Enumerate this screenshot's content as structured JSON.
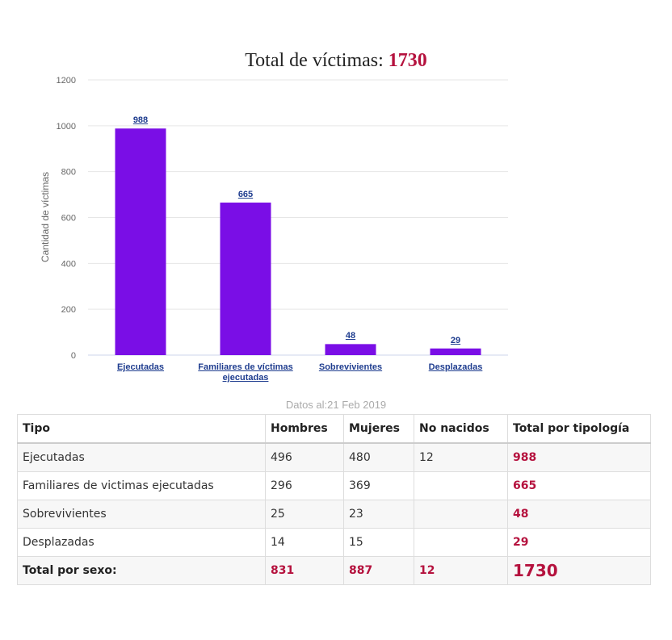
{
  "chart_data": {
    "type": "bar",
    "title_prefix": "Total de víctimas:",
    "title_total": "1730",
    "ylabel": "Cantidad de víctimas",
    "ylim": [
      0,
      1200
    ],
    "yticks": [
      "0",
      "200",
      "400",
      "600",
      "800",
      "1000",
      "1200"
    ],
    "categories": [
      "Ejecutadas",
      "Familiares de víctimas ejecutadas",
      "Sobrevivientes",
      "Desplazadas"
    ],
    "values": [
      988,
      665,
      48,
      29
    ],
    "bar_color": "#7a0ee6",
    "grid": true
  },
  "date_text": "Datos al:21 Feb 2019",
  "table": {
    "headers": [
      "Tipo",
      "Hombres",
      "Mujeres",
      "No nacidos",
      "Total por tipología"
    ],
    "rows": [
      [
        "Ejecutadas",
        "496",
        "480",
        "12",
        "988"
      ],
      [
        "Familiares de victimas ejecutadas",
        "296",
        "369",
        "",
        "665"
      ],
      [
        "Sobrevivientes",
        "25",
        "23",
        "",
        "48"
      ],
      [
        "Desplazadas",
        "14",
        "15",
        "",
        "29"
      ]
    ],
    "total_row": [
      "Total por sexo:",
      "831",
      "887",
      "12",
      "1730"
    ]
  },
  "colors": {
    "accent": "#b5123e",
    "bar": "#7a0ee6",
    "link": "#1f3d8f"
  }
}
